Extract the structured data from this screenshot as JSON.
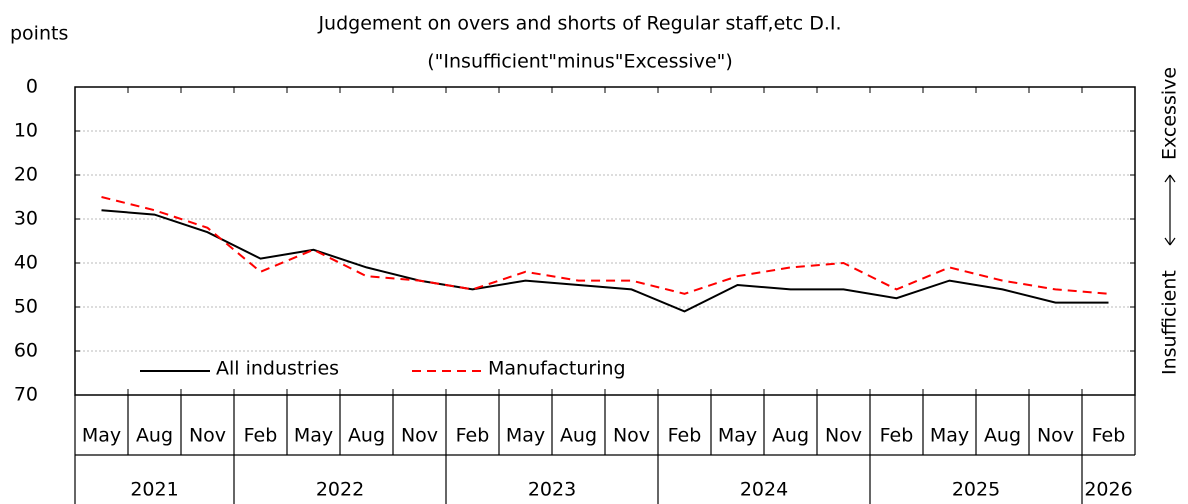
{
  "chart_data": {
    "type": "line",
    "title": "Judgement on overs and shorts of Regular staff,etc D.I.",
    "subtitle": "(\"Insufficient\"minus\"Excessive\")",
    "y_axis_label": "points",
    "right_labels": [
      "Insufficient",
      "Excessive"
    ],
    "categories": [
      "May",
      "Aug",
      "Nov",
      "Feb",
      "May",
      "Aug",
      "Nov",
      "Feb",
      "May",
      "Aug",
      "Nov",
      "Feb",
      "May",
      "Aug",
      "Nov",
      "Feb",
      "May",
      "Aug",
      "Nov",
      "Feb"
    ],
    "category_groups": [
      "2021",
      null,
      null,
      "2022",
      null,
      null,
      null,
      "2023",
      null,
      null,
      null,
      "2024",
      null,
      null,
      null,
      "2025",
      null,
      null,
      null,
      "2026"
    ],
    "series": [
      {
        "name": "All industries",
        "color": "#000000",
        "dash": false,
        "values": [
          28,
          29,
          33,
          39,
          37,
          41,
          44,
          46,
          44,
          45,
          46,
          51,
          45,
          46,
          46,
          48,
          44,
          46,
          49,
          49
        ]
      },
      {
        "name": "Manufacturing",
        "color": "#ff0000",
        "dash": true,
        "values": [
          25,
          28,
          32,
          42,
          37,
          43,
          44,
          46,
          42,
          44,
          44,
          47,
          43,
          41,
          40,
          46,
          41,
          44,
          46,
          47
        ]
      }
    ],
    "ylim": [
      0,
      70
    ],
    "yticks": [
      0,
      10,
      20,
      30,
      40,
      50,
      60,
      70
    ],
    "y_inverted": true,
    "grid": true
  }
}
